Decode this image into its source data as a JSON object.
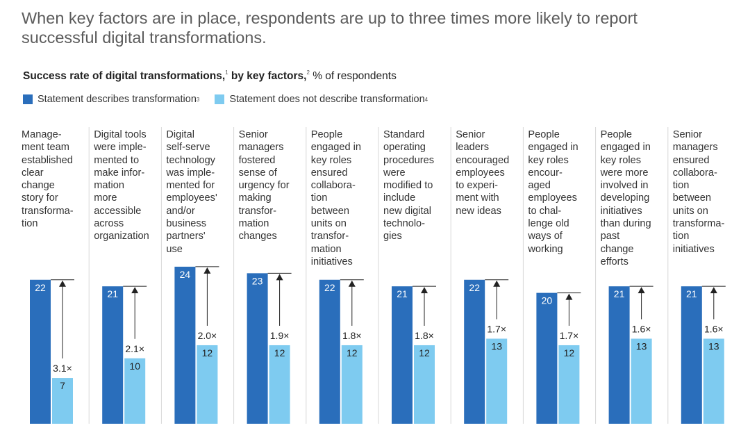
{
  "headline": "When key factors are in place, respondents are up to three times more likely to report successful digital transformations.",
  "subtitle": {
    "bold": "Success rate of digital transformations,",
    "note1": "1",
    "bold2": " by key factors,",
    "note2": "2",
    "rest": " % of respondents"
  },
  "legend": {
    "describes": "Statement describes transformation",
    "describes_note": "3",
    "not_describes": "Statement does not describe transformation",
    "not_describes_note": "4"
  },
  "colors": {
    "describes": "#2a6ebb",
    "not_describes": "#7ecbf0",
    "separator": "#d7d7d7",
    "arrow": "#222222"
  },
  "chart_data": {
    "type": "bar",
    "title": "Success rate of digital transformations, by key factors, % of respondents",
    "ylim": [
      0,
      24
    ],
    "categories": [
      [
        "Manage-",
        "ment team",
        "established",
        "clear",
        "change",
        "story for",
        "transforma-",
        "tion"
      ],
      [
        "Digital tools",
        "were imple-",
        "mented to",
        "make infor-",
        "mation",
        "more",
        "accessible",
        "across",
        "organization"
      ],
      [
        "Digital",
        "self-serve",
        "technology",
        "was imple-",
        "mented for",
        "employees'",
        "and/or",
        "business",
        "partners'",
        "use"
      ],
      [
        "Senior",
        "managers",
        "fostered",
        "sense of",
        "urgency for",
        "making",
        "transfor-",
        "mation",
        "changes"
      ],
      [
        "People",
        "engaged in",
        "key roles",
        "ensured",
        "collabora-",
        "tion",
        "between",
        "units on",
        "transfor-",
        "mation",
        "initiatives"
      ],
      [
        "Standard",
        "operating",
        "procedures",
        "were",
        "modified to",
        "include",
        "new digital",
        "technolo-",
        "gies"
      ],
      [
        "Senior",
        "leaders",
        "encouraged",
        "employees",
        "to experi-",
        "ment with",
        "new ideas"
      ],
      [
        "People",
        "engaged in",
        "key roles",
        "encour-",
        "aged",
        "employees",
        "to chal-",
        "lenge old",
        "ways of",
        "working"
      ],
      [
        "People",
        "engaged in",
        "key roles",
        "were more",
        "involved in",
        "developing",
        "initiatives",
        "than during",
        "past",
        "change",
        "efforts"
      ],
      [
        "Senior",
        "managers",
        "ensured",
        "collabora-",
        "tion",
        "between",
        "units on",
        "transforma-",
        "tion",
        "initiatives"
      ]
    ],
    "series": [
      {
        "name": "Statement describes transformation",
        "values": [
          22,
          21,
          24,
          23,
          22,
          21,
          22,
          20,
          21,
          21
        ]
      },
      {
        "name": "Statement does not describe transformation",
        "values": [
          7,
          10,
          12,
          12,
          12,
          12,
          13,
          12,
          13,
          13
        ]
      }
    ],
    "multipliers": [
      "3.1×",
      "2.1×",
      "2.0×",
      "1.9×",
      "1.8×",
      "1.8×",
      "1.7×",
      "1.7×",
      "1.6×",
      "1.6×"
    ]
  }
}
